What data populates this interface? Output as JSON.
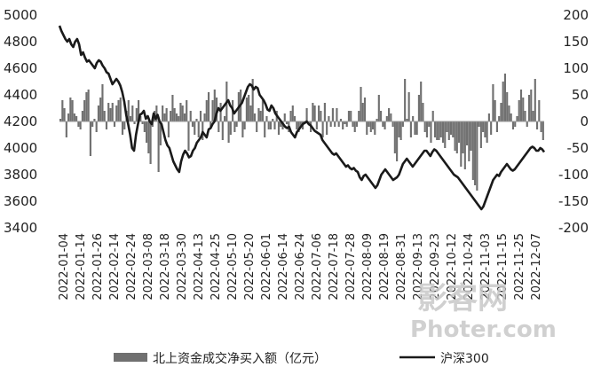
{
  "chart_data": {
    "type": "bar+line",
    "title": "",
    "x_labels": [
      "2022-01-04",
      "2022-01-14",
      "2022-01-26",
      "2022-02-14",
      "2022-02-24",
      "2022-03-08",
      "2022-03-18",
      "2022-03-30",
      "2022-04-13",
      "2022-04-25",
      "2022-05-10",
      "2022-05-20",
      "2022-06-01",
      "2022-06-14",
      "2022-06-24",
      "2022-07-06",
      "2022-07-18",
      "2022-07-28",
      "2022-08-09",
      "2022-08-19",
      "2022-08-31",
      "2022-09-13",
      "2022-09-23",
      "2022-10-12",
      "2022-10-24",
      "2022-11-03",
      "2022-11-15",
      "2022-11-25",
      "2022-12-07"
    ],
    "y_left": {
      "min": 3400,
      "max": 5000,
      "ticks": [
        "3400",
        "3600",
        "3800",
        "4000",
        "4200",
        "4400",
        "4600",
        "4800",
        "5000"
      ]
    },
    "y_right": {
      "min": -200,
      "max": 200,
      "ticks": [
        "-200",
        "-150",
        "-100",
        "-50",
        "0",
        "50",
        "100",
        "150",
        "200"
      ]
    },
    "series": [
      {
        "name": "北上资金成交净买入额（亿元）",
        "kind": "bar",
        "axis": "right",
        "color": "#707070",
        "values": [
          5,
          40,
          25,
          -30,
          15,
          45,
          40,
          15,
          10,
          -10,
          -15,
          20,
          40,
          55,
          60,
          -65,
          -10,
          5,
          -20,
          30,
          45,
          70,
          20,
          -15,
          35,
          25,
          35,
          -10,
          30,
          40,
          45,
          -25,
          -15,
          20,
          40,
          10,
          30,
          -5,
          25,
          40,
          10,
          -5,
          -20,
          -40,
          -60,
          -80,
          -10,
          20,
          30,
          -95,
          -45,
          30,
          15,
          25,
          -30,
          20,
          50,
          25,
          15,
          10,
          35,
          30,
          15,
          40,
          -55,
          20,
          -10,
          -25,
          5,
          -30,
          20,
          -35,
          15,
          40,
          55,
          -10,
          40,
          60,
          45,
          -20,
          35,
          -35,
          10,
          75,
          -40,
          -25,
          40,
          -20,
          -10,
          55,
          60,
          -30,
          -15,
          45,
          50,
          30,
          80,
          15,
          -20,
          25,
          20,
          40,
          -30,
          10,
          -15,
          -15,
          5,
          -15,
          20,
          -25,
          -10,
          -15,
          15,
          -5,
          -20,
          20,
          30,
          10,
          -15,
          -20,
          -10,
          -15,
          -5,
          25,
          -5,
          -20,
          35,
          30,
          -15,
          30,
          20,
          -30,
          35,
          -25,
          10,
          -10,
          25,
          -10,
          25,
          -10,
          5,
          -15,
          -5,
          -10,
          20,
          20,
          -10,
          -20,
          -10,
          20,
          65,
          35,
          45,
          -25,
          -10,
          -20,
          -15,
          -25,
          5,
          50,
          20,
          -10,
          -15,
          10,
          25,
          15,
          -10,
          -60,
          -75,
          -30,
          -35,
          -10,
          80,
          5,
          55,
          -30,
          10,
          -25,
          -25,
          50,
          75,
          35,
          -20,
          -30,
          -10,
          -40,
          20,
          -30,
          -35,
          -35,
          -30,
          -40,
          -50,
          -20,
          -35,
          -25,
          -30,
          -55,
          -60,
          -40,
          -85,
          -60,
          -90,
          -45,
          -75,
          -55,
          -110,
          -120,
          -130,
          -10,
          -50,
          -20,
          -30,
          -40,
          15,
          -25,
          70,
          40,
          -20,
          10,
          35,
          75,
          90,
          55,
          30,
          15,
          -15,
          -10,
          10,
          40,
          60,
          45,
          20,
          -10,
          50,
          60,
          20,
          80,
          -15,
          40,
          -20,
          -35
        ],
        "note": "bar values estimated (sampled) from the figure"
      },
      {
        "name": "沪深300",
        "kind": "line",
        "axis": "left",
        "color": "#1a1a1a",
        "values": [
          4920,
          4880,
          4850,
          4820,
          4800,
          4820,
          4780,
          4760,
          4800,
          4820,
          4780,
          4700,
          4720,
          4680,
          4650,
          4660,
          4640,
          4620,
          4600,
          4640,
          4660,
          4650,
          4620,
          4600,
          4570,
          4560,
          4520,
          4480,
          4500,
          4520,
          4500,
          4470,
          4420,
          4350,
          4250,
          4180,
          4100,
          4000,
          3980,
          4100,
          4180,
          4250,
          4260,
          4280,
          4220,
          4240,
          4200,
          4180,
          4260,
          4220,
          4250,
          4200,
          4180,
          4120,
          4060,
          4020,
          4000,
          3950,
          3900,
          3870,
          3840,
          3820,
          3900,
          3950,
          3980,
          3960,
          3930,
          3940,
          3980,
          4000,
          4040,
          4060,
          4080,
          4120,
          4100,
          4080,
          4140,
          4150,
          4180,
          4200,
          4260,
          4300,
          4280,
          4300,
          4320,
          4340,
          4360,
          4320,
          4300,
          4260,
          4280,
          4300,
          4320,
          4340,
          4380,
          4420,
          4460,
          4480,
          4470,
          4440,
          4460,
          4450,
          4400,
          4380,
          4360,
          4330,
          4290,
          4280,
          4320,
          4300,
          4260,
          4240,
          4220,
          4200,
          4180,
          4160,
          4150,
          4160,
          4120,
          4100,
          4080,
          4120,
          4140,
          4160,
          4180,
          4190,
          4200,
          4180,
          4170,
          4150,
          4130,
          4120,
          4110,
          4100,
          4060,
          4040,
          4020,
          4000,
          3980,
          3960,
          3950,
          3960,
          3940,
          3920,
          3900,
          3880,
          3860,
          3870,
          3850,
          3840,
          3850,
          3830,
          3820,
          3780,
          3760,
          3790,
          3800,
          3780,
          3760,
          3740,
          3720,
          3700,
          3720,
          3760,
          3800,
          3820,
          3840,
          3820,
          3800,
          3780,
          3760,
          3770,
          3780,
          3800,
          3840,
          3880,
          3900,
          3920,
          3900,
          3880,
          3860,
          3880,
          3900,
          3920,
          3940,
          3960,
          3980,
          3980,
          3960,
          3940,
          3970,
          3990,
          3980,
          3960,
          3940,
          3920,
          3900,
          3880,
          3860,
          3840,
          3820,
          3800,
          3790,
          3780,
          3760,
          3740,
          3720,
          3700,
          3680,
          3660,
          3640,
          3620,
          3600,
          3580,
          3560,
          3540,
          3560,
          3600,
          3640,
          3680,
          3720,
          3760,
          3780,
          3800,
          3790,
          3820,
          3840,
          3860,
          3880,
          3860,
          3840,
          3830,
          3840,
          3860,
          3880,
          3900,
          3920,
          3940,
          3960,
          3980,
          4000,
          4010,
          4000,
          3980,
          3980,
          4000,
          3990,
          3970
        ],
        "note": "line values estimated (sampled) from the figure"
      }
    ],
    "legend": {
      "placement": "bottom",
      "items": [
        "北上资金成交净买入额（亿元）",
        "沪深300"
      ]
    },
    "grid": false
  },
  "watermark": {
    "line1": "影客网",
    "line2": "Photer.com"
  }
}
